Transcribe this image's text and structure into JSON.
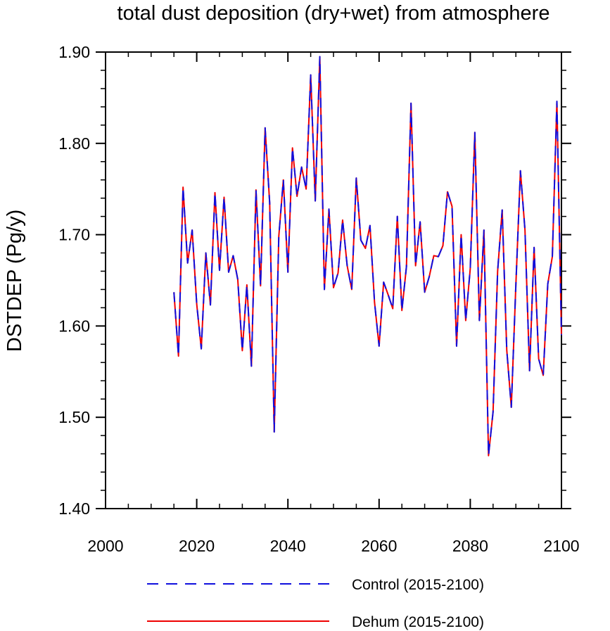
{
  "chart_data": {
    "type": "line",
    "title": "total dust deposition (dry+wet) from atmosphere",
    "xlabel": "",
    "ylabel": "DSTDEP  (Pg/y)",
    "xlim": [
      2000,
      2100
    ],
    "ylim": [
      1.4,
      1.9
    ],
    "xticks": [
      2000,
      2020,
      2040,
      2060,
      2080,
      2100
    ],
    "xtick_labels": [
      "2000",
      "2020",
      "2040",
      "2060",
      "2080",
      "2100"
    ],
    "yticks": [
      1.4,
      1.5,
      1.6,
      1.7,
      1.8,
      1.9
    ],
    "ytick_labels": [
      "1.40",
      "1.50",
      "1.60",
      "1.70",
      "1.80",
      "1.90"
    ],
    "grid": false,
    "legend_position": "bottom",
    "x": [
      2015,
      2016,
      2017,
      2018,
      2019,
      2020,
      2021,
      2022,
      2023,
      2024,
      2025,
      2026,
      2027,
      2028,
      2029,
      2030,
      2031,
      2032,
      2033,
      2034,
      2035,
      2036,
      2037,
      2038,
      2039,
      2040,
      2041,
      2042,
      2043,
      2044,
      2045,
      2046,
      2047,
      2048,
      2049,
      2050,
      2051,
      2052,
      2053,
      2054,
      2055,
      2056,
      2057,
      2058,
      2059,
      2060,
      2061,
      2062,
      2063,
      2064,
      2065,
      2066,
      2067,
      2068,
      2069,
      2070,
      2071,
      2072,
      2073,
      2074,
      2075,
      2076,
      2077,
      2078,
      2079,
      2080,
      2081,
      2082,
      2083,
      2084,
      2085,
      2086,
      2087,
      2088,
      2089,
      2090,
      2091,
      2092,
      2093,
      2094,
      2095,
      2096,
      2097,
      2098,
      2099,
      2100
    ],
    "series": [
      {
        "name": "Control (2015-2100)",
        "color": "#1010dd",
        "dash": "dashed",
        "values": [
          1.637,
          1.567,
          1.752,
          1.669,
          1.705,
          1.624,
          1.575,
          1.68,
          1.623,
          1.746,
          1.661,
          1.741,
          1.659,
          1.677,
          1.651,
          1.573,
          1.645,
          1.556,
          1.749,
          1.644,
          1.817,
          1.735,
          1.484,
          1.698,
          1.76,
          1.659,
          1.795,
          1.742,
          1.774,
          1.75,
          1.875,
          1.737,
          1.895,
          1.64,
          1.728,
          1.642,
          1.658,
          1.716,
          1.666,
          1.64,
          1.762,
          1.694,
          1.685,
          1.71,
          1.626,
          1.578,
          1.648,
          1.634,
          1.619,
          1.72,
          1.617,
          1.665,
          1.844,
          1.666,
          1.714,
          1.637,
          1.654,
          1.677,
          1.676,
          1.688,
          1.747,
          1.731,
          1.578,
          1.7,
          1.606,
          1.663,
          1.812,
          1.606,
          1.705,
          1.458,
          1.506,
          1.66,
          1.727,
          1.574,
          1.511,
          1.645,
          1.77,
          1.705,
          1.551,
          1.686,
          1.564,
          1.546,
          1.646,
          1.676,
          1.846,
          1.59
        ]
      },
      {
        "name": "Dehum (2015-2100)",
        "color": "#ee0000",
        "dash": "solid",
        "values": [
          1.637,
          1.567,
          1.752,
          1.669,
          1.705,
          1.624,
          1.575,
          1.68,
          1.623,
          1.746,
          1.661,
          1.741,
          1.659,
          1.677,
          1.651,
          1.573,
          1.645,
          1.556,
          1.749,
          1.644,
          1.817,
          1.735,
          1.484,
          1.698,
          1.76,
          1.659,
          1.795,
          1.742,
          1.774,
          1.75,
          1.875,
          1.737,
          1.895,
          1.64,
          1.728,
          1.642,
          1.658,
          1.716,
          1.666,
          1.64,
          1.762,
          1.694,
          1.685,
          1.71,
          1.626,
          1.578,
          1.648,
          1.634,
          1.619,
          1.72,
          1.617,
          1.665,
          1.844,
          1.666,
          1.714,
          1.637,
          1.654,
          1.677,
          1.676,
          1.688,
          1.747,
          1.731,
          1.578,
          1.7,
          1.606,
          1.663,
          1.812,
          1.606,
          1.705,
          1.458,
          1.506,
          1.66,
          1.727,
          1.574,
          1.511,
          1.645,
          1.77,
          1.705,
          1.551,
          1.686,
          1.564,
          1.546,
          1.646,
          1.676,
          1.846,
          1.59
        ]
      }
    ]
  }
}
